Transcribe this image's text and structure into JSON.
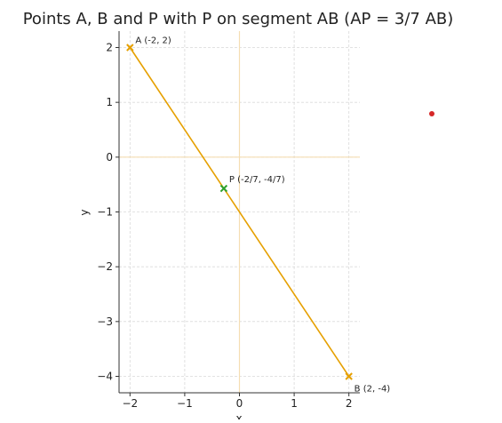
{
  "chart_data": {
    "type": "scatter",
    "title": "Points A, B and P with P on segment AB (AP = 3/7 AB)",
    "xlabel": "x",
    "ylabel": "y",
    "xlim": [
      -2.2,
      2.2
    ],
    "ylim": [
      -4.3,
      2.3
    ],
    "x_ticks": [
      -2,
      -1,
      0,
      1,
      2
    ],
    "y_ticks": [
      -4,
      -3,
      -2,
      -1,
      0,
      1,
      2
    ],
    "x_tick_labels": [
      "−2",
      "−1",
      "0",
      "1",
      "2"
    ],
    "y_tick_labels": [
      "−4",
      "−3",
      "−2",
      "−1",
      "0",
      "1",
      "2"
    ],
    "grid": true,
    "reference_lines": {
      "x": 0,
      "y": 0,
      "color": "#f5deb3"
    },
    "segment": {
      "from": [
        -2,
        2
      ],
      "to": [
        2,
        -4
      ],
      "color": "#e6a000"
    },
    "points": [
      {
        "x": -2,
        "y": 2,
        "label": "A (-2, 2)",
        "marker": "x",
        "color": "#e6a000"
      },
      {
        "x": 2,
        "y": -4,
        "label": "B (2, -4)",
        "marker": "x",
        "color": "#e6a000"
      },
      {
        "x": -0.2857,
        "y": -0.5714,
        "label": "P (-2/7, -4/7)",
        "marker": "x",
        "color": "#2ca02c"
      }
    ],
    "extra_marks": [
      {
        "color": "#d62728",
        "description": "isolated red dot outside the axes"
      }
    ]
  }
}
